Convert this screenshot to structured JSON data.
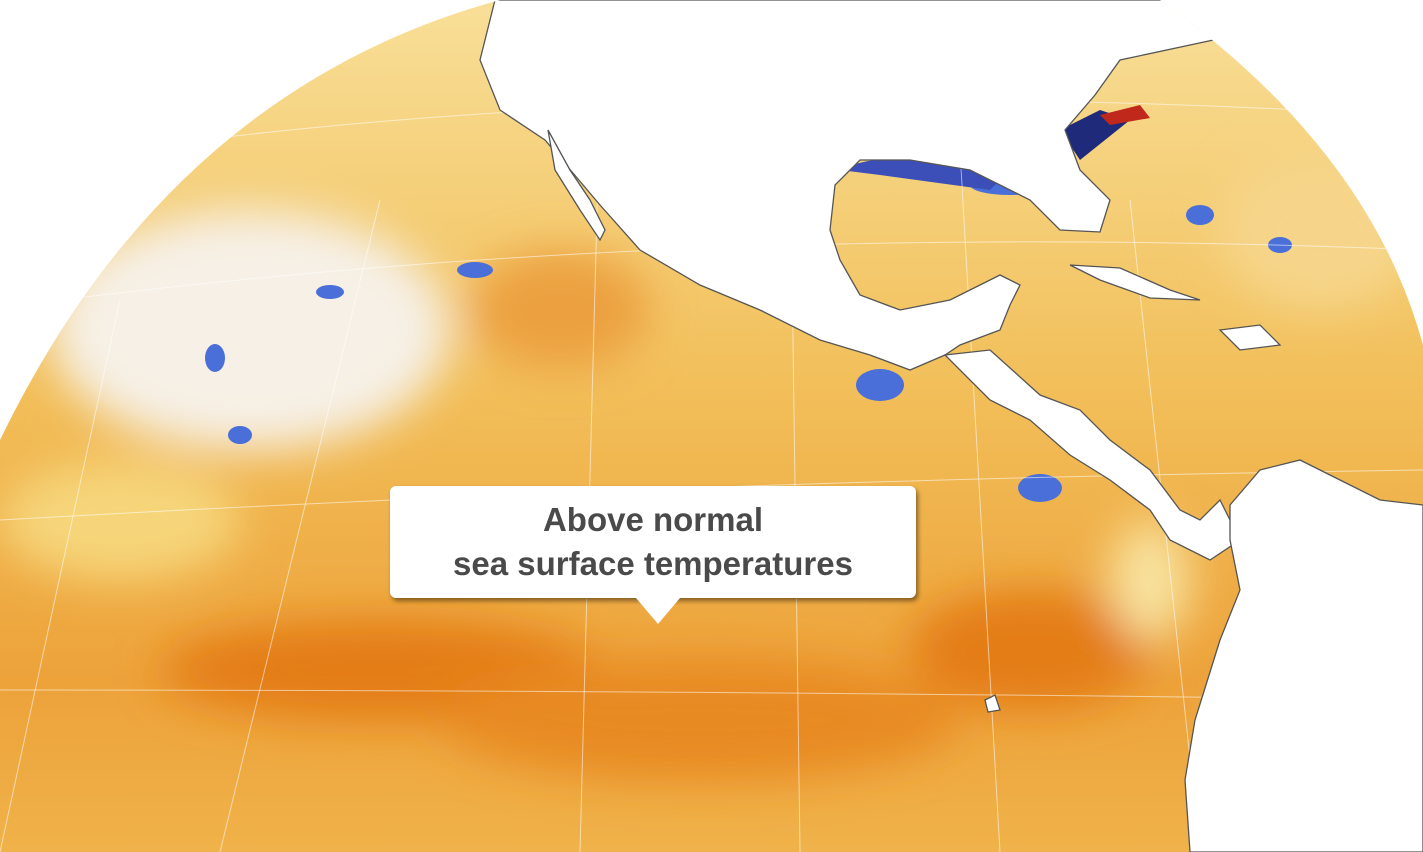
{
  "map": {
    "subject": "Sea surface temperature anomalies",
    "colors": {
      "land": "#ffffff",
      "coast": "#555555",
      "warm_light": "#f7dc8c",
      "warm": "#f0b24a",
      "warm_strong": "#e8861f",
      "cool": "#4a6fd8",
      "cool_strong": "#1f2a7a",
      "neutral": "#f2f2f2"
    },
    "callout": {
      "line1": "Above normal",
      "line2": "sea surface temperatures"
    }
  }
}
